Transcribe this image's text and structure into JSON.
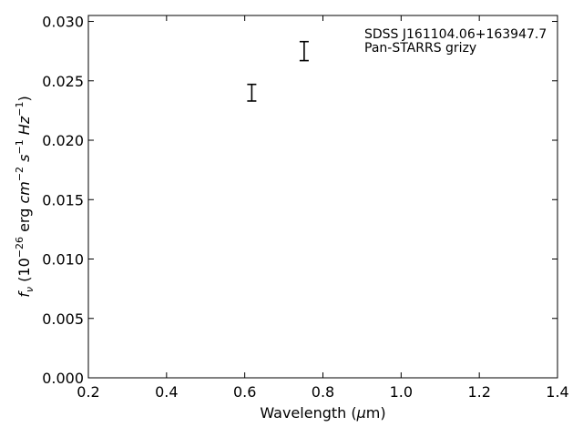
{
  "chart_data": {
    "type": "scatter",
    "title": "",
    "xlabel": {
      "prefix": "Wavelength (",
      "greek": "μ",
      "unit": "m",
      "suffix": ")"
    },
    "ylabel": {
      "f": "f",
      "nu": "ν",
      "open": " (10",
      "exp1": "−26",
      "erg": " erg ",
      "cm": "cm",
      "exp2": "−2",
      "s": "s",
      "exp3": "−1",
      "hz": "Hz",
      "exp4": "−1",
      "close": ")"
    },
    "xlim": [
      0.2,
      1.4
    ],
    "ylim": [
      0.0,
      0.0305
    ],
    "xticks": [
      "0.2",
      "0.4",
      "0.6",
      "0.8",
      "1.0",
      "1.2",
      "1.4"
    ],
    "yticks": [
      "0.000",
      "0.005",
      "0.010",
      "0.015",
      "0.020",
      "0.025",
      "0.030"
    ],
    "grid": false,
    "annotations": [
      "SDSS J161104.06+163947.7",
      "Pan-STARRS grizy"
    ],
    "series": [
      {
        "marker": "errorbar",
        "color": "#000000",
        "points": [
          {
            "x": 0.618,
            "y": 0.024,
            "yerr": 0.0007
          },
          {
            "x": 0.752,
            "y": 0.0275,
            "yerr": 0.0008
          }
        ]
      }
    ]
  }
}
